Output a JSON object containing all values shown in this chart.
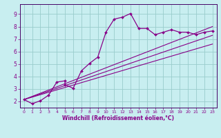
{
  "xlabel": "Windchill (Refroidissement éolien,°C)",
  "bg_color": "#c8eef0",
  "line_color": "#880088",
  "grid_color": "#99cccc",
  "axis_color": "#440066",
  "xlim": [
    -0.5,
    23.5
  ],
  "ylim": [
    1.5,
    9.8
  ],
  "xticks": [
    0,
    1,
    2,
    3,
    4,
    5,
    6,
    7,
    8,
    9,
    10,
    11,
    12,
    13,
    14,
    15,
    16,
    17,
    18,
    19,
    20,
    21,
    22,
    23
  ],
  "yticks": [
    2,
    3,
    4,
    5,
    6,
    7,
    8,
    9
  ],
  "series1_x": [
    0,
    1,
    2,
    3,
    4,
    5,
    5,
    6,
    7,
    8,
    9,
    10,
    11,
    12,
    13,
    14,
    15,
    16,
    17,
    18,
    19,
    20,
    21,
    22,
    23
  ],
  "series1_y": [
    2.15,
    1.82,
    2.05,
    2.5,
    3.55,
    3.65,
    3.35,
    3.05,
    4.45,
    5.05,
    5.55,
    7.55,
    8.6,
    8.75,
    9.05,
    7.85,
    7.85,
    7.35,
    7.55,
    7.75,
    7.55,
    7.55,
    7.35,
    7.55,
    7.65
  ],
  "line1_x": [
    0,
    23
  ],
  "line1_y": [
    2.15,
    8.0
  ],
  "line2_x": [
    0,
    23
  ],
  "line2_y": [
    2.15,
    7.3
  ],
  "line3_x": [
    0,
    23
  ],
  "line3_y": [
    2.15,
    6.6
  ]
}
